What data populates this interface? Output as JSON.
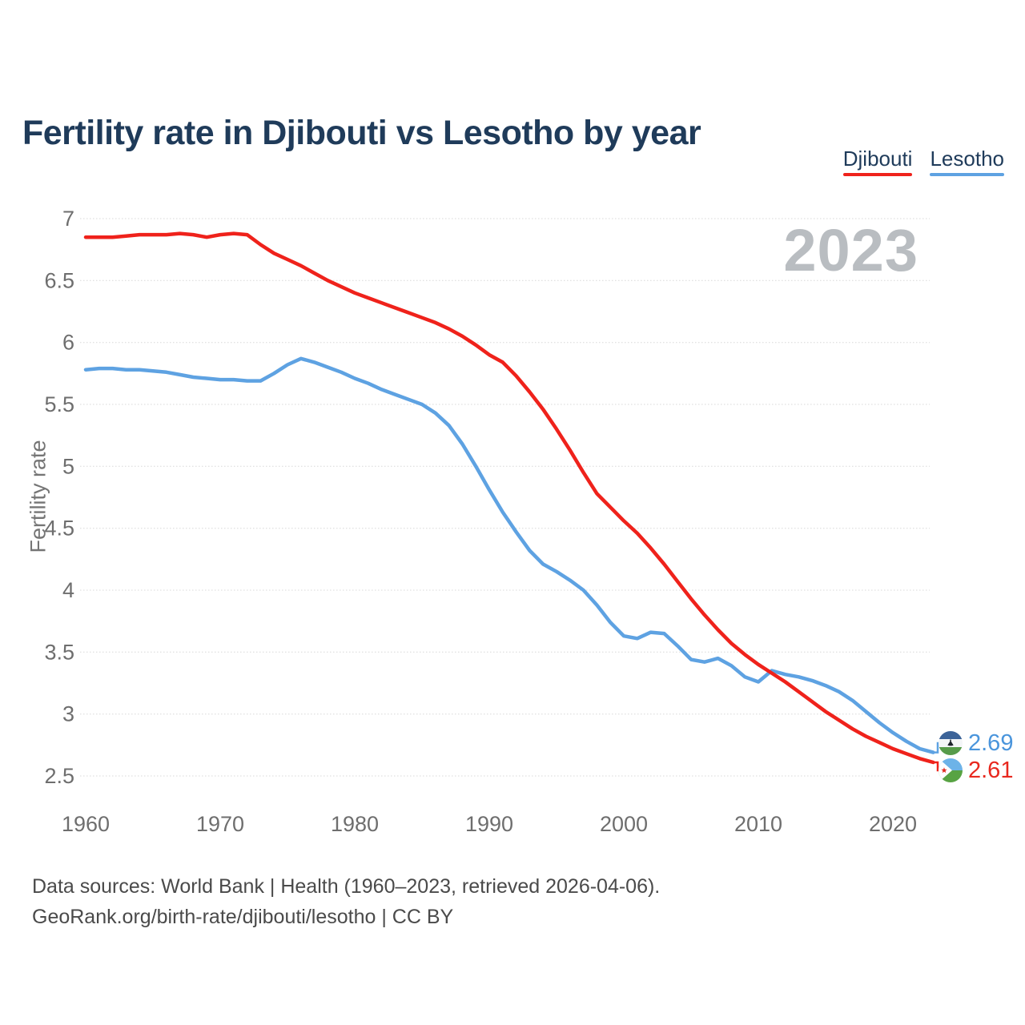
{
  "title": "Fertility rate in Djibouti vs Lesotho by year",
  "watermark": "2023",
  "legend": {
    "items": [
      {
        "label": "Djibouti",
        "color": "#ef221b"
      },
      {
        "label": "Lesotho",
        "color": "#5ea2e2"
      }
    ]
  },
  "end_labels": {
    "lesotho": {
      "value": "2.69",
      "color": "#4a95dc"
    },
    "djibouti": {
      "value": "2.61",
      "color": "#e8281e"
    }
  },
  "footer": {
    "line1": "Data sources: World Bank | Health (1960–2023, retrieved 2026-04-06).",
    "line2": "GeoRank.org/birth-rate/djibouti/lesotho | CC BY"
  },
  "chart_data": {
    "type": "line",
    "title": "Fertility rate in Djibouti vs Lesotho by year",
    "xlabel": "",
    "ylabel": "Fertility rate",
    "ylim": [
      2.5,
      7
    ],
    "yticks": [
      7,
      6.5,
      6,
      5.5,
      5,
      4.5,
      4,
      3.5,
      3,
      2.5
    ],
    "xticks": [
      1960,
      1970,
      1980,
      1990,
      2000,
      2010,
      2020
    ],
    "grid": true,
    "legend_position": "top-right",
    "last_year": 2023,
    "x": [
      1960,
      1961,
      1962,
      1963,
      1964,
      1965,
      1966,
      1967,
      1968,
      1969,
      1970,
      1971,
      1972,
      1973,
      1974,
      1975,
      1976,
      1977,
      1978,
      1979,
      1980,
      1981,
      1982,
      1983,
      1984,
      1985,
      1986,
      1987,
      1988,
      1989,
      1990,
      1991,
      1992,
      1993,
      1994,
      1995,
      1996,
      1997,
      1998,
      1999,
      2000,
      2001,
      2002,
      2003,
      2004,
      2005,
      2006,
      2007,
      2008,
      2009,
      2010,
      2011,
      2012,
      2013,
      2014,
      2015,
      2016,
      2017,
      2018,
      2019,
      2020,
      2021,
      2022,
      2023
    ],
    "series": [
      {
        "name": "Djibouti",
        "color": "#ef221b",
        "values": [
          6.85,
          6.85,
          6.85,
          6.86,
          6.87,
          6.87,
          6.87,
          6.88,
          6.87,
          6.85,
          6.87,
          6.88,
          6.87,
          6.79,
          6.72,
          6.67,
          6.62,
          6.56,
          6.5,
          6.45,
          6.4,
          6.36,
          6.32,
          6.28,
          6.24,
          6.2,
          6.16,
          6.11,
          6.05,
          5.98,
          5.9,
          5.84,
          5.73,
          5.6,
          5.46,
          5.3,
          5.13,
          4.95,
          4.78,
          4.67,
          4.56,
          4.46,
          4.34,
          4.21,
          4.07,
          3.93,
          3.8,
          3.68,
          3.57,
          3.48,
          3.4,
          3.33,
          3.26,
          3.18,
          3.1,
          3.02,
          2.95,
          2.88,
          2.82,
          2.77,
          2.72,
          2.68,
          2.64,
          2.61
        ]
      },
      {
        "name": "Lesotho",
        "color": "#5ea2e2",
        "values": [
          5.78,
          5.79,
          5.79,
          5.78,
          5.78,
          5.77,
          5.76,
          5.74,
          5.72,
          5.71,
          5.7,
          5.7,
          5.69,
          5.69,
          5.75,
          5.82,
          5.87,
          5.84,
          5.8,
          5.76,
          5.71,
          5.67,
          5.62,
          5.58,
          5.54,
          5.5,
          5.43,
          5.33,
          5.18,
          5.0,
          4.81,
          4.63,
          4.47,
          4.32,
          4.21,
          4.15,
          4.08,
          4.0,
          3.88,
          3.74,
          3.63,
          3.61,
          3.66,
          3.65,
          3.55,
          3.44,
          3.42,
          3.45,
          3.39,
          3.3,
          3.26,
          3.35,
          3.32,
          3.3,
          3.27,
          3.23,
          3.18,
          3.11,
          3.02,
          2.93,
          2.85,
          2.78,
          2.72,
          2.69
        ]
      }
    ]
  }
}
